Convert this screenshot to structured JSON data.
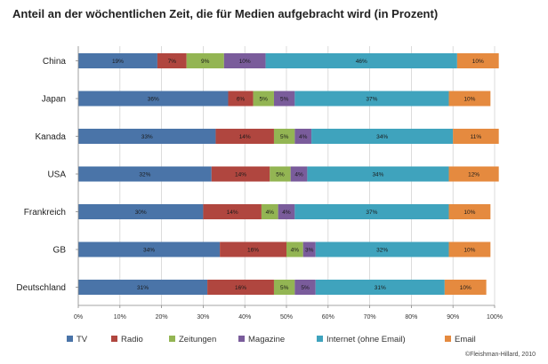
{
  "chart_data": {
    "type": "bar",
    "orientation": "horizontal",
    "stacked": "percent",
    "title": "Anteil an der wöchentlichen Zeit, die für Medien aufgebracht wird (in Prozent)",
    "categories": [
      "China",
      "Japan",
      "Kanada",
      "USA",
      "Frankreich",
      "GB",
      "Deutschland"
    ],
    "series": [
      {
        "name": "TV",
        "color": "#4a74a8",
        "values": [
          19,
          36,
          33,
          32,
          30,
          34,
          31
        ],
        "labels": [
          "19%",
          "36%",
          "33%",
          "32%",
          "30%",
          "34%",
          "31%"
        ]
      },
      {
        "name": "Radio",
        "color": "#b0463f",
        "values": [
          7,
          6,
          14,
          14,
          14,
          16,
          16
        ],
        "labels": [
          "7%",
          "6%",
          "14%",
          "14%",
          "14%",
          "16%",
          "16%"
        ]
      },
      {
        "name": "Zeitungen",
        "color": "#93b553",
        "values": [
          9,
          5,
          5,
          5,
          4,
          4,
          5
        ],
        "labels": [
          "9%",
          "5%",
          "5%",
          "5%",
          "4%",
          "4%",
          "5%"
        ]
      },
      {
        "name": "Magazine",
        "color": "#7a5c9b",
        "values": [
          10,
          5,
          4,
          4,
          4,
          3,
          5
        ],
        "labels": [
          "10%",
          "5%",
          "4%",
          "4%",
          "4%",
          "3%",
          "5%"
        ]
      },
      {
        "name": "Internet (ohne Email)",
        "color": "#3fa3bd",
        "values": [
          46,
          37,
          34,
          34,
          37,
          32,
          31
        ],
        "labels": [
          "46%",
          "37%",
          "34%",
          "34%",
          "37%",
          "32%",
          "31%"
        ]
      },
      {
        "name": "Email",
        "color": "#e58a3f",
        "values": [
          10,
          10,
          11,
          12,
          10,
          10,
          10
        ],
        "labels": [
          "10%",
          "10%",
          "11%",
          "12%",
          "10%",
          "10%",
          "10%"
        ]
      }
    ],
    "xlim": [
      0,
      100
    ],
    "xticks": [
      "0%",
      "10%",
      "20%",
      "30%",
      "40%",
      "50%",
      "60%",
      "70%",
      "80%",
      "90%",
      "100%"
    ],
    "grid": true,
    "legend": "bottom"
  },
  "credit": "©Fleishman-Hillard, 2010"
}
